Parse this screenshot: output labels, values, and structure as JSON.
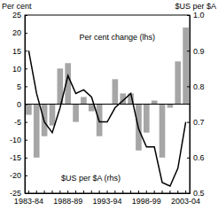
{
  "chart_data": {
    "type": "bar",
    "y_label": "Per cent",
    "y2_label": "$US per $A",
    "categories": [
      "1983-84",
      null,
      null,
      null,
      null,
      "1988-89",
      null,
      null,
      null,
      null,
      "1993-94",
      null,
      null,
      null,
      null,
      "1998-99",
      null,
      null,
      null,
      null,
      "2003-04"
    ],
    "series": [
      {
        "name": "Per cent change (lhs)",
        "type": "bar",
        "color": "#a6a6a6",
        "values": [
          -3,
          -15,
          -9,
          -6,
          10,
          11.5,
          -5,
          2,
          -2,
          -9,
          0,
          7,
          3,
          3,
          -13,
          -8,
          1,
          -15,
          -1,
          12,
          21.5
        ]
      },
      {
        "name": "$US per $A (rhs)",
        "type": "line",
        "axis": "y2",
        "color": "#000000",
        "values": [
          0.9,
          0.78,
          0.7,
          0.67,
          0.74,
          0.83,
          0.78,
          0.79,
          0.77,
          0.7,
          0.7,
          0.74,
          0.76,
          0.78,
          0.68,
          0.63,
          0.63,
          0.53,
          0.52,
          0.57,
          0.7
        ]
      }
    ],
    "ylim": [
      -25,
      25
    ],
    "yticks": [
      -25,
      -20,
      -15,
      -10,
      -5,
      0,
      5,
      10,
      15,
      20,
      25
    ],
    "y2lim": [
      0.5,
      1.0
    ],
    "y2ticks": [
      0.5,
      0.6,
      0.7,
      0.8,
      0.9,
      {
        "value": 1.0,
        "label": "1.0"
      }
    ],
    "grid": false
  }
}
